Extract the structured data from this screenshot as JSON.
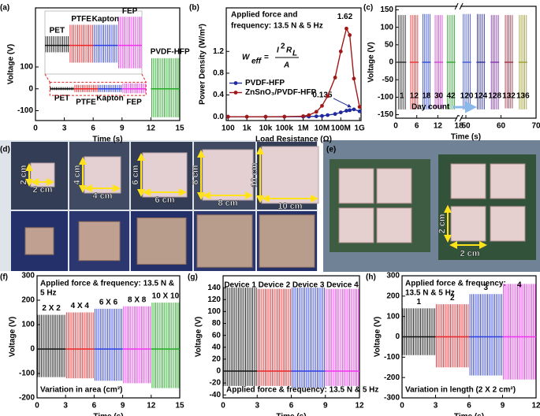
{
  "chart_data": [
    {
      "panel": "(a)",
      "type": "signal",
      "xlabel": "Time (s)",
      "ylabel": "Voltage (V)",
      "xlim": [
        0,
        15
      ],
      "xticks": [
        0,
        3,
        6,
        9,
        12,
        15
      ],
      "ylim": [
        -145,
        370
      ],
      "yticks": [
        -100,
        0,
        100
      ],
      "series": [
        {
          "name": "PET",
          "color": "#111111",
          "span": [
            1.5,
            4
          ],
          "values": [
            8,
            -6
          ]
        },
        {
          "name": "PTFE",
          "color": "#e8262b",
          "span": [
            4,
            6.5
          ],
          "values": [
            18,
            -15
          ]
        },
        {
          "name": "Kapton",
          "color": "#2f3fe0",
          "span": [
            6.5,
            9
          ],
          "values": [
            18,
            -15
          ]
        },
        {
          "name": "FEP",
          "color": "#ee33ee",
          "span": [
            9,
            11.5
          ],
          "values": [
            25,
            -20
          ]
        },
        {
          "name": "PVDF-HFP",
          "color": "#22aa22",
          "span": [
            12,
            15
          ],
          "values": [
            140,
            -130
          ]
        }
      ],
      "inset_xlim": [
        1.5,
        11.5
      ],
      "inset_ylim": [
        -25,
        30
      ]
    },
    {
      "panel": "(b)",
      "type": "line",
      "xlog": true,
      "xlabel": "Load Resistance (Ω)",
      "ylabel": "Power Density (W/m²)",
      "title": "Applied force and",
      "subtitle": "frequency: 13.5 N & 5 Hz",
      "equation": {
        "lhs": "W",
        "lhs_sub": "eff",
        "eq": "=",
        "num": "I",
        "num_sup": "2",
        "num2": "R",
        "num2_sub": "L",
        "den": "A"
      },
      "xlim": [
        80,
        1200000000
      ],
      "xticks": [
        100,
        {
          "value": 1000,
          "label": "1k"
        },
        {
          "value": 10000,
          "label": "10k"
        },
        {
          "value": 100000,
          "label": "100k"
        },
        {
          "value": 1000000,
          "label": "1M"
        },
        {
          "value": 10000000,
          "label": "10M"
        },
        {
          "value": 100000000,
          "label": "100M"
        },
        {
          "value": 1000000000,
          "label": "1G"
        }
      ],
      "ylim": [
        -0.07,
        2.0
      ],
      "yticks": [
        {
          "value": 0,
          "label": "0.0"
        },
        0.4,
        0.8,
        1.2
      ],
      "x": [
        100,
        1000,
        10000,
        100000,
        1000000,
        2000000,
        5000000,
        10000000,
        20000000,
        50000000,
        100000000,
        200000000,
        300000000,
        500000000,
        1000000000
      ],
      "legend": "center-left",
      "series": [
        {
          "name": "PVDF-HFP",
          "color": "#1f2a9e",
          "values": [
            0,
            0,
            0,
            0,
            0.001,
            0.003,
            0.008,
            0.015,
            0.03,
            0.05,
            0.08,
            0.11,
            0.12,
            0.135,
            0.1
          ],
          "peak_label": "0.135"
        },
        {
          "name": "ZnSnO₃/PVDF-HFP",
          "color": "#a01818",
          "values": [
            0,
            0,
            0,
            0.002,
            0.01,
            0.03,
            0.09,
            0.2,
            0.38,
            0.72,
            1.2,
            1.62,
            1.5,
            0.7,
            0.18
          ],
          "peak_label": "1.62"
        }
      ]
    },
    {
      "panel": "(c)",
      "type": "signal",
      "xlabel": "Time (s)",
      "ylabel": "Voltage (V)",
      "annotation": "Day count",
      "xlim": [
        0,
        70
      ],
      "xbreak": [
        18,
        48
      ],
      "xticks": [
        0,
        6,
        12,
        18,
        50,
        60,
        70
      ],
      "ylim": [
        -160,
        160
      ],
      "yticks": [
        -150,
        -100,
        -50,
        0,
        50,
        100,
        150
      ],
      "series": [
        {
          "name": "1",
          "color": "#333333",
          "span": [
            0.5,
            3
          ],
          "values": [
            135,
            -135
          ]
        },
        {
          "name": "12",
          "color": "#e8383b",
          "span": [
            4,
            6.5
          ],
          "values": [
            135,
            -135
          ]
        },
        {
          "name": "18",
          "color": "#3a4fd0",
          "span": [
            7.5,
            10
          ],
          "values": [
            138,
            -135
          ]
        },
        {
          "name": "30",
          "color": "#d44dd8",
          "span": [
            11,
            13.5
          ],
          "values": [
            135,
            -132
          ]
        },
        {
          "name": "42",
          "color": "#3aa83a",
          "span": [
            14.5,
            17
          ],
          "values": [
            135,
            -135
          ]
        },
        {
          "name": "120",
          "color": "#4a5fd8",
          "span": [
            49,
            51.5
          ],
          "values": [
            138,
            -135
          ]
        },
        {
          "name": "124",
          "color": "#3a3aa0",
          "span": [
            53,
            55.5
          ],
          "values": [
            138,
            -135
          ]
        },
        {
          "name": "128",
          "color": "#8a3ab0",
          "span": [
            57,
            59.5
          ],
          "values": [
            135,
            -135
          ]
        },
        {
          "name": "132",
          "color": "#a03a50",
          "span": [
            61,
            63.5
          ],
          "values": [
            135,
            -132
          ]
        },
        {
          "name": "136",
          "color": "#a0a03a",
          "span": [
            65,
            67.5
          ],
          "values": [
            135,
            -135
          ]
        }
      ]
    },
    {
      "panel": "(f)",
      "type": "signal",
      "xlabel": "Time (s)",
      "ylabel": "Voltage (V)",
      "notes": [
        "Applied force & frequency: 13.5 N &",
        "5 Hz"
      ],
      "footnote": "Variation in area (cm²)",
      "xlim": [
        0,
        15
      ],
      "xticks": [
        0,
        3,
        6,
        9,
        12,
        15
      ],
      "ylim": [
        -200,
        300
      ],
      "yticks": [
        -200,
        -100,
        0,
        100,
        200,
        300
      ],
      "series": [
        {
          "name": "2 X 2",
          "color": "#111111",
          "span": [
            0,
            3
          ],
          "values": [
            140,
            -115
          ]
        },
        {
          "name": "4 X 4",
          "color": "#e8262b",
          "span": [
            3,
            6
          ],
          "values": [
            150,
            -120
          ]
        },
        {
          "name": "6 X 6",
          "color": "#2f3fe0",
          "span": [
            6,
            9
          ],
          "values": [
            165,
            -130
          ]
        },
        {
          "name": "8 X 8",
          "color": "#ee33ee",
          "span": [
            9,
            12
          ],
          "values": [
            175,
            -140
          ]
        },
        {
          "name": "10 X 10",
          "color": "#22aa22",
          "span": [
            12,
            15
          ],
          "values": [
            190,
            -160
          ]
        }
      ]
    },
    {
      "panel": "(g)",
      "type": "signal",
      "xlabel": "Time (s)",
      "ylabel": "Voltage (V)",
      "footnote": "Applied force & frequency: 13.5 N & 5 Hz",
      "xlim": [
        0,
        12
      ],
      "xticks": [
        0,
        3,
        6,
        9,
        12
      ],
      "ylim": [
        -45,
        160
      ],
      "yticks": [
        -40,
        -20,
        0,
        20,
        40,
        60,
        80,
        100,
        120,
        140
      ],
      "series": [
        {
          "name": "Device 1",
          "color": "#111111",
          "span": [
            0,
            3
          ],
          "values": [
            140,
            -25
          ]
        },
        {
          "name": "Device 2",
          "color": "#e8262b",
          "span": [
            3,
            6
          ],
          "values": [
            138,
            -25
          ]
        },
        {
          "name": "Device 3",
          "color": "#2f3fe0",
          "span": [
            6,
            9
          ],
          "values": [
            140,
            -28
          ]
        },
        {
          "name": "Device 4",
          "color": "#ee33ee",
          "span": [
            9,
            12
          ],
          "values": [
            138,
            -25
          ]
        }
      ]
    },
    {
      "panel": "(h)",
      "type": "signal",
      "xlabel": "Time (s)",
      "ylabel": "Voltage (V)",
      "notes": [
        "Applied force & frequency:",
        "13.5 N & 5 Hz"
      ],
      "footnote": "Variation in length (2 X 2 cm²)",
      "xlim": [
        0,
        12
      ],
      "xticks": [
        0,
        3,
        6,
        9,
        12
      ],
      "ylim": [
        -300,
        300
      ],
      "yticks": [
        -300,
        -200,
        -100,
        0,
        100,
        200,
        300
      ],
      "series": [
        {
          "name": "1",
          "color": "#111111",
          "span": [
            0,
            3
          ],
          "values": [
            140,
            -90
          ]
        },
        {
          "name": "2",
          "color": "#e8262b",
          "span": [
            3,
            6
          ],
          "values": [
            160,
            -150
          ]
        },
        {
          "name": "3",
          "color": "#2f3fe0",
          "span": [
            6,
            9
          ],
          "values": [
            210,
            -190
          ]
        },
        {
          "name": "4",
          "color": "#ee33ee",
          "span": [
            9,
            12
          ],
          "values": [
            260,
            -210
          ]
        }
      ]
    }
  ],
  "photo_d": {
    "panel": "(d)",
    "dims": [
      "2 cm",
      "4 cm",
      "6 cm",
      "8 cm",
      "10 cm"
    ]
  },
  "photo_e": {
    "panel": "(e)",
    "dim": "2 cm"
  }
}
